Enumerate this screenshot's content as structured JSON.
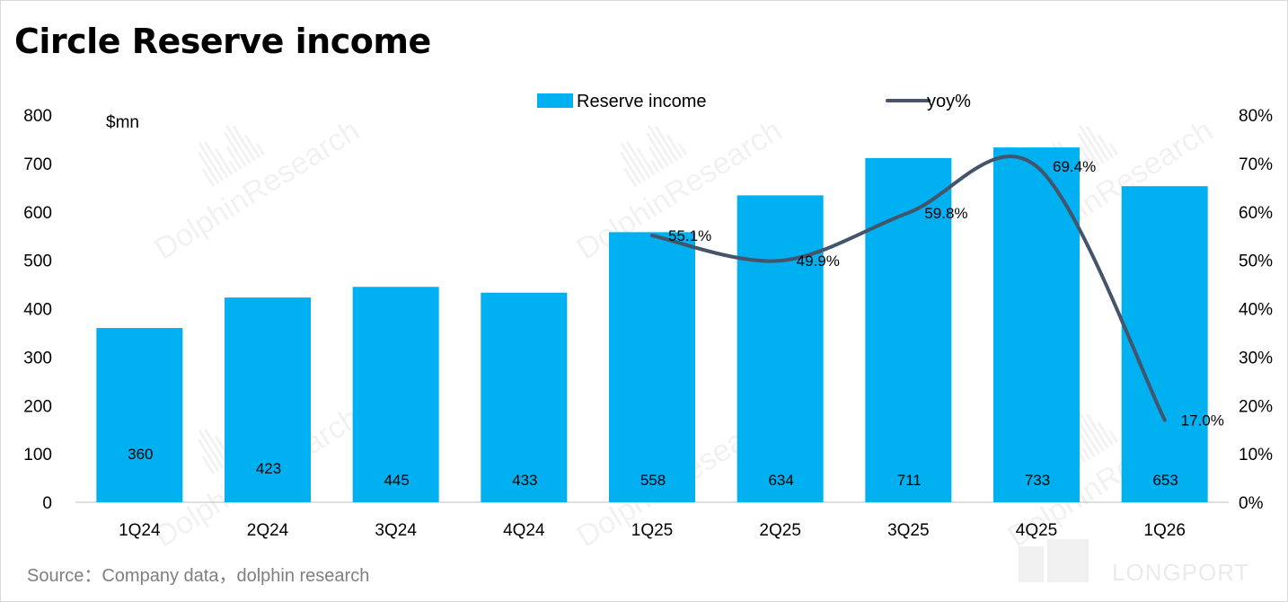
{
  "title": "Circle Reserve income",
  "source": "Source：Company data，dolphin research",
  "unit_label": "$mn",
  "watermark": "DolphinResearch",
  "brand": "LONGPORT",
  "colors": {
    "bar": "#00b0f0",
    "line": "#44546a",
    "axis": "#bfbfbf"
  },
  "chart_data": {
    "type": "bar",
    "title": "Circle Reserve income",
    "categories": [
      "1Q24",
      "2Q24",
      "3Q24",
      "4Q24",
      "1Q25",
      "2Q25",
      "3Q25",
      "4Q25",
      "1Q26"
    ],
    "series": [
      {
        "name": "Reserve income",
        "type": "bar",
        "axis": "left",
        "values": [
          360,
          423,
          445,
          433,
          558,
          634,
          711,
          733,
          653
        ],
        "labels": [
          "360",
          "423",
          "445",
          "433",
          "558",
          "634",
          "711",
          "733",
          "653"
        ]
      },
      {
        "name": "yoy%",
        "type": "line",
        "axis": "right",
        "values": [
          null,
          null,
          null,
          null,
          55.1,
          49.9,
          59.8,
          69.4,
          17.0
        ],
        "labels": [
          "",
          "",
          "",
          "",
          "55.1%",
          "49.9%",
          "59.8%",
          "69.4%",
          "17.0%"
        ]
      }
    ],
    "ylim": [
      0,
      800
    ],
    "yticks": [
      0,
      100,
      200,
      300,
      400,
      500,
      600,
      700,
      800
    ],
    "ylim_right": [
      0,
      80
    ],
    "yticks_right": [
      "0%",
      "10%",
      "20%",
      "30%",
      "40%",
      "50%",
      "60%",
      "70%",
      "80%"
    ],
    "ylabel": "$mn",
    "legend_position": "top",
    "grid": false
  }
}
